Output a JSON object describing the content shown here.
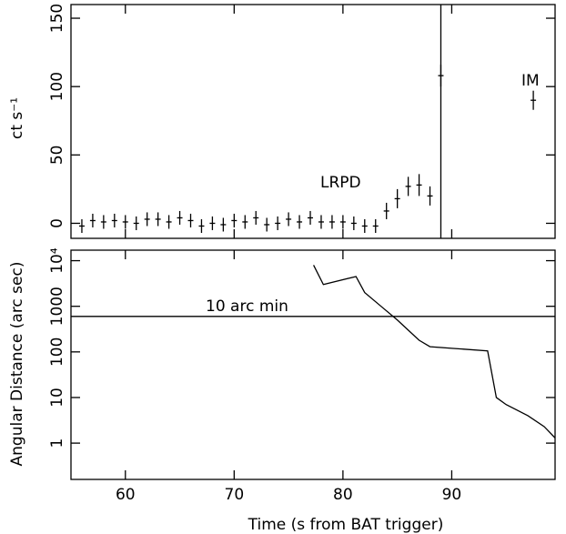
{
  "chart_data": [
    {
      "type": "errorbar",
      "ylabel": "ct s⁻¹",
      "xlim": [
        55,
        99.5
      ],
      "ylim": [
        -11,
        160
      ],
      "yticks": [
        0,
        50,
        100,
        150
      ],
      "series": [
        {
          "name": "LRPD",
          "color": "#000000",
          "x": [
            56,
            57,
            58,
            59,
            60,
            61,
            62,
            63,
            64,
            65,
            66,
            67,
            68,
            69,
            70,
            71,
            72,
            73,
            74,
            75,
            76,
            77,
            78,
            79,
            80,
            81,
            82,
            83,
            84,
            85,
            86,
            87,
            88,
            89,
            97.5
          ],
          "values": [
            -2,
            2,
            1,
            2,
            1,
            0,
            3,
            3,
            1,
            4,
            2,
            -2,
            0,
            -1,
            2,
            1,
            4,
            -1,
            0,
            3,
            1,
            4,
            1,
            1,
            1,
            0,
            -2,
            -2,
            9,
            18,
            27,
            28,
            20,
            108,
            90
          ],
          "errors": [
            5,
            5,
            5,
            5,
            5,
            5,
            5,
            5,
            5,
            5,
            5,
            5,
            5,
            5,
            5,
            5,
            5,
            5,
            5,
            5,
            5,
            5,
            5,
            5,
            5,
            5,
            5,
            5,
            6,
            7,
            7,
            8,
            7,
            8,
            7
          ]
        }
      ],
      "vline": 89,
      "annotations": [
        "LRPD",
        "IM"
      ]
    },
    {
      "type": "line",
      "xlabel": "Time (s from BAT trigger)",
      "ylabel": "Angular Distance (arc sec)",
      "xlim": [
        55,
        99.5
      ],
      "ylim": [
        0.16,
        17000
      ],
      "log_y": true,
      "xticks": [
        60,
        70,
        80,
        90
      ],
      "yticks": [
        1,
        10,
        100,
        1000,
        {
          "value": 10000,
          "label": "10⁴"
        }
      ],
      "series": [
        {
          "name": "Angular Distance",
          "color": "#000000",
          "x": [
            77.3,
            78.2,
            81.2,
            82,
            83.5,
            85,
            86,
            87,
            88,
            90,
            93.3,
            94.1,
            95,
            97,
            98.5,
            99.5
          ],
          "values": [
            8000,
            3000,
            4500,
            2000,
            1000,
            500,
            300,
            180,
            130,
            120,
            105,
            10,
            7,
            4,
            2.3,
            1.3
          ]
        }
      ],
      "hline": {
        "value": 600,
        "label": "10 arc min"
      }
    }
  ]
}
